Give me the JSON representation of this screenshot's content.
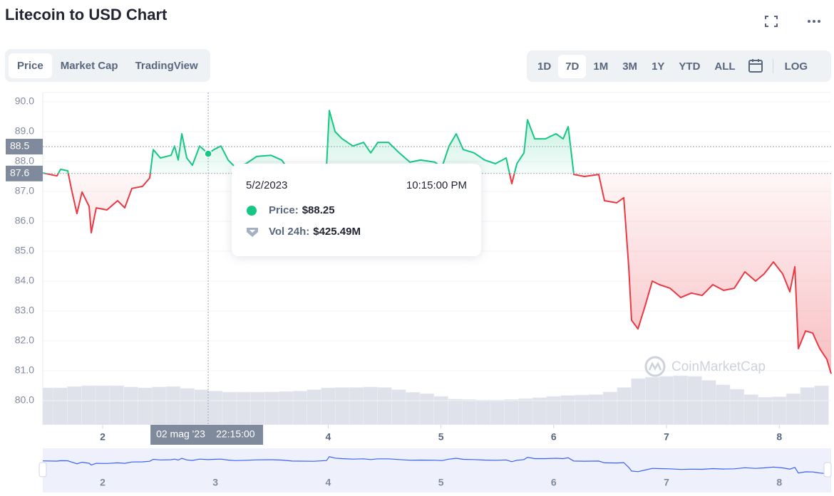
{
  "chart_data": {
    "type": "line",
    "title": "Litecoin to USD Chart",
    "tabs": [
      "Price",
      "Market Cap",
      "TradingView"
    ],
    "ranges": [
      "1D",
      "7D",
      "1M",
      "3M",
      "1Y",
      "YTD",
      "ALL"
    ],
    "log_button": "LOG",
    "watermark": "CoinMarketCap",
    "x": [
      1.469,
      1.595,
      1.627,
      1.69,
      1.722,
      1.772,
      1.817,
      1.88,
      1.899,
      1.943,
      2.038,
      2.133,
      2.196,
      2.259,
      2.354,
      2.417,
      2.449,
      2.512,
      2.607,
      2.638,
      2.67,
      2.702,
      2.746,
      2.796,
      2.86,
      2.936,
      2.986,
      3.049,
      3.113,
      3.176,
      3.271,
      3.365,
      3.492,
      3.587,
      3.681,
      3.871,
      3.985,
      4.01,
      4.061,
      4.124,
      4.219,
      4.314,
      4.377,
      4.44,
      4.535,
      4.63,
      4.724,
      4.819,
      4.946,
      5.009,
      5.072,
      5.135,
      5.198,
      5.293,
      5.388,
      5.483,
      5.578,
      5.628,
      5.673,
      5.736,
      5.767,
      5.831,
      5.925,
      6.02,
      6.083,
      6.128,
      6.178,
      6.273,
      6.399,
      6.45,
      6.558,
      6.621,
      6.665,
      6.69,
      6.747,
      6.81,
      6.874,
      6.937,
      7.032,
      7.126,
      7.221,
      7.316,
      7.411,
      7.506,
      7.601,
      7.695,
      7.79,
      7.866,
      7.948,
      8.03,
      8.094,
      8.138,
      8.169,
      8.233,
      8.296,
      8.359,
      8.422,
      8.46
    ],
    "values": [
      87.62,
      87.52,
      87.74,
      87.69,
      87.1,
      86.26,
      86.98,
      86.5,
      85.62,
      86.45,
      86.38,
      86.69,
      86.45,
      87.1,
      87.17,
      87.45,
      88.4,
      88.12,
      88.21,
      88.52,
      88.05,
      88.93,
      88.12,
      87.88,
      88.52,
      88.26,
      88.4,
      88.52,
      88.05,
      87.81,
      87.93,
      88.17,
      88.21,
      88.05,
      87.57,
      87.45,
      87.81,
      89.71,
      89.0,
      88.76,
      88.52,
      88.64,
      88.29,
      88.64,
      88.64,
      88.29,
      87.98,
      88.05,
      87.98,
      87.81,
      88.52,
      88.93,
      88.4,
      88.29,
      88.05,
      87.93,
      88.12,
      87.26,
      87.93,
      88.29,
      89.4,
      88.76,
      88.76,
      88.93,
      88.76,
      89.17,
      87.57,
      87.5,
      87.57,
      86.69,
      86.62,
      86.79,
      84.48,
      82.69,
      82.4,
      83.17,
      84.0,
      83.88,
      83.76,
      83.45,
      83.6,
      83.52,
      83.88,
      83.69,
      83.76,
      84.31,
      84.0,
      84.24,
      84.64,
      84.24,
      83.64,
      84.48,
      81.74,
      82.33,
      82.26,
      81.74,
      81.38,
      80.9
    ],
    "up_color": "#16c784",
    "down_color": "#ea3943",
    "baseline": 87.6,
    "crosshair_y": 88.5,
    "crosshair_label": {
      "date": "02 mag '23",
      "time": "22:15:00"
    },
    "xlim": [
      1.469,
      8.46
    ],
    "ylim": [
      79.19,
      90.31
    ],
    "xticks": [
      2,
      3,
      4,
      5,
      6,
      7,
      8
    ],
    "yticks": [
      {
        "value": 80,
        "label": "80.0"
      },
      {
        "value": 81,
        "label": "81.0"
      },
      {
        "value": 82,
        "label": "82.0"
      },
      {
        "value": 83,
        "label": "83.0"
      },
      {
        "value": 84,
        "label": "84.0"
      },
      {
        "value": 85,
        "label": "85.0"
      },
      {
        "value": 86,
        "label": "86.0"
      },
      {
        "value": 87,
        "label": "87.0"
      },
      {
        "value": 88,
        "label": "88.0"
      },
      {
        "value": 89,
        "label": "89.0"
      },
      {
        "value": 90,
        "label": "90.0"
      }
    ],
    "grid": true,
    "volume": {
      "color": "#dfe2ea",
      "ylim": [
        0,
        800
      ],
      "x": [
        1.5,
        1.625,
        1.75,
        1.875,
        2.0,
        2.125,
        2.25,
        2.375,
        2.5,
        2.625,
        2.75,
        2.875,
        3.0,
        3.125,
        3.25,
        3.375,
        3.5,
        3.625,
        3.75,
        3.875,
        4.0,
        4.125,
        4.25,
        4.375,
        4.5,
        4.625,
        4.75,
        4.875,
        5.0,
        5.125,
        5.25,
        5.375,
        5.5,
        5.625,
        5.75,
        5.875,
        6.0,
        6.125,
        6.25,
        6.375,
        6.5,
        6.625,
        6.75,
        6.875,
        7.0,
        7.125,
        7.25,
        7.375,
        7.5,
        7.625,
        7.75,
        7.875,
        8.0,
        8.125,
        8.25,
        8.375
      ],
      "values": [
        416,
        416,
        430,
        440,
        440,
        440,
        425,
        416,
        425,
        430,
        410,
        395,
        380,
        368,
        368,
        368,
        370,
        375,
        380,
        395,
        416,
        420,
        420,
        425,
        420,
        395,
        365,
        350,
        320,
        290,
        285,
        280,
        280,
        285,
        295,
        305,
        320,
        330,
        335,
        340,
        370,
        420,
        520,
        536,
        545,
        552,
        545,
        500,
        450,
        400,
        340,
        310,
        315,
        350,
        420,
        440
      ]
    },
    "navigator_color": "#3861fb",
    "tooltip": {
      "date": "5/2/2023",
      "time": "10:15:00 PM",
      "price_label": "Price:",
      "price": "$88.25",
      "volume_label": "Vol 24h:",
      "volume": "$425.49M"
    }
  }
}
